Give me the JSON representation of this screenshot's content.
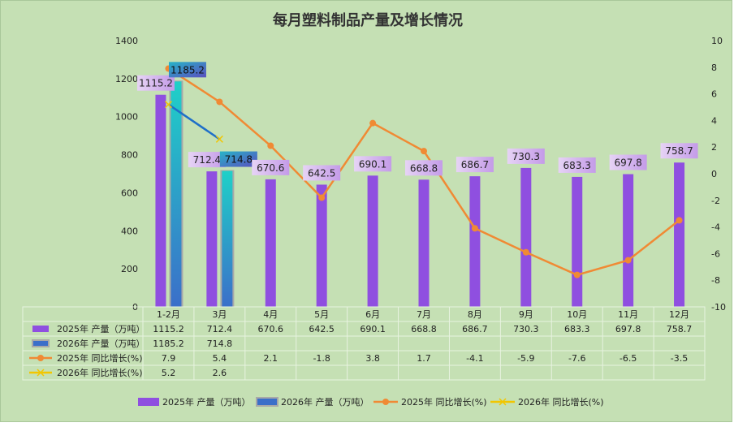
{
  "chart_data": {
    "type": "bar",
    "title": "每月塑料制品产量及增长情况",
    "categories": [
      "1-2月",
      "3月",
      "4月",
      "5月",
      "6月",
      "7月",
      "8月",
      "9月",
      "10月",
      "11月",
      "12月"
    ],
    "y_left": {
      "min": 0,
      "max": 1400,
      "step": 200
    },
    "y_right": {
      "min": -10,
      "max": 10,
      "step": 2
    },
    "grid": false,
    "legend_position": "bottom",
    "series": [
      {
        "name": "2025年 产量（万吨）",
        "type": "bar",
        "axis": "left",
        "color": "#8f4fe0",
        "values": [
          1115.2,
          712.4,
          670.6,
          642.5,
          690.1,
          668.8,
          686.7,
          730.3,
          683.3,
          697.8,
          758.7
        ],
        "table": [
          "1115.2",
          "712.4",
          "670.6",
          "642.5",
          "690.1",
          "668.8",
          "686.7",
          "730.3",
          "683.3",
          "697.8",
          "758.7"
        ]
      },
      {
        "name": "2026年 产量（万吨）",
        "type": "bar",
        "axis": "left",
        "color": "#1fc7c7",
        "values": [
          1185.2,
          714.8,
          null,
          null,
          null,
          null,
          null,
          null,
          null,
          null,
          null
        ],
        "table": [
          "1185.2",
          "714.8",
          "",
          "",
          "",
          "",
          "",
          "",
          "",
          "",
          ""
        ]
      },
      {
        "name": "2025年 同比增长(%)",
        "type": "line",
        "axis": "right",
        "color": "#f08a34",
        "values": [
          7.9,
          5.4,
          2.1,
          -1.8,
          3.8,
          1.7,
          -4.1,
          -5.9,
          -7.6,
          -6.5,
          -3.5
        ],
        "table": [
          "7.9",
          "5.4",
          "2.1",
          "-1.8",
          "3.8",
          "1.7",
          "-4.1",
          "-5.9",
          "-7.6",
          "-6.5",
          "-3.5"
        ]
      },
      {
        "name": "2026年 同比增长(%)",
        "type": "line",
        "axis": "right",
        "color": "#f2c600",
        "values": [
          5.2,
          2.6,
          null,
          null,
          null,
          null,
          null,
          null,
          null,
          null,
          null
        ],
        "table": [
          "5.2",
          "2.6",
          "",
          "",
          "",
          "",
          "",
          "",
          "",
          "",
          ""
        ]
      }
    ],
    "annotations": [
      "1115.2",
      "1185.2",
      "712.4",
      "714.8",
      "670.6",
      "642.5",
      "690.1",
      "668.8",
      "686.7",
      "730.3",
      "683.3",
      "697.8",
      "758.7"
    ]
  }
}
